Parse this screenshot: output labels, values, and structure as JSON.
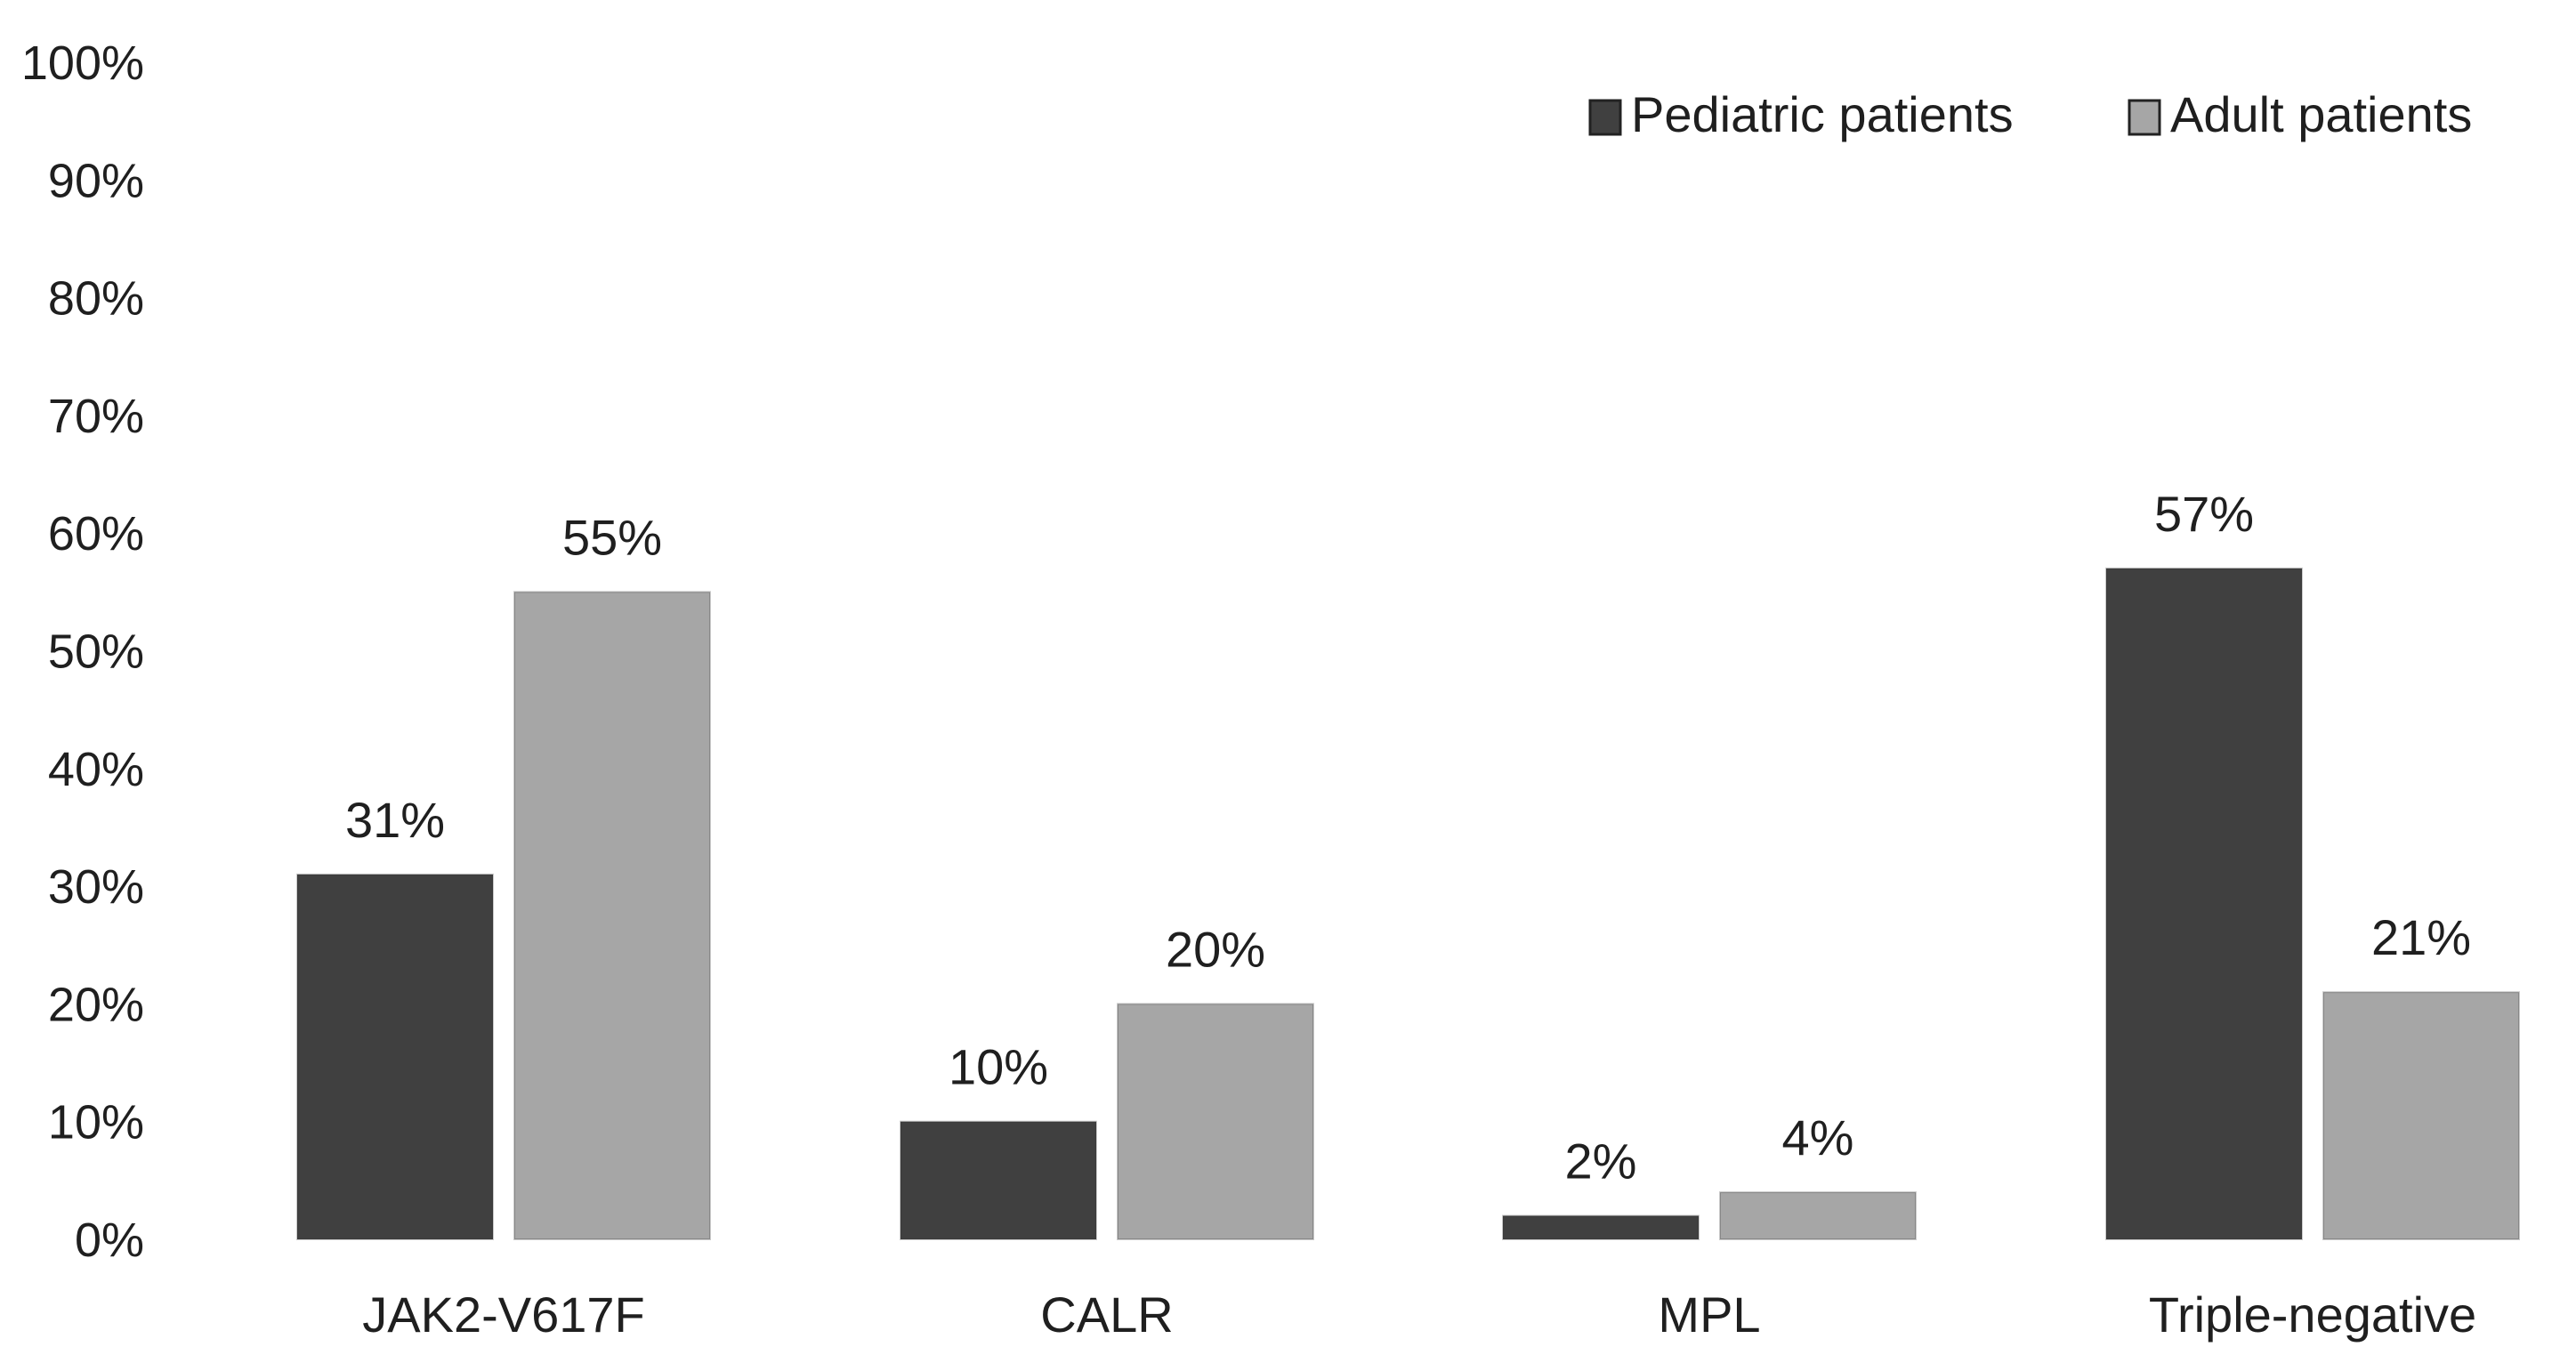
{
  "chart_data": {
    "type": "bar",
    "title": "",
    "xlabel": "",
    "ylabel": "",
    "ylim": [
      0,
      100
    ],
    "y_ticks": [
      0,
      10,
      20,
      30,
      40,
      50,
      60,
      70,
      80,
      90,
      100
    ],
    "y_tick_labels": [
      "0%",
      "10%",
      "20%",
      "30%",
      "40%",
      "50%",
      "60%",
      "70%",
      "80%",
      "90%",
      "100%"
    ],
    "categories": [
      "JAK2-V617F",
      "CALR",
      "MPL",
      "Triple-negative"
    ],
    "series": [
      {
        "name": "Pediatric patients",
        "color": "#404040",
        "values": [
          31,
          10,
          2,
          57
        ],
        "labels": [
          "31%",
          "10%",
          "2%",
          "57%"
        ]
      },
      {
        "name": "Adult patients",
        "color": "#a6a6a6",
        "values": [
          55,
          20,
          4,
          21
        ],
        "labels": [
          "55%",
          "20%",
          "4%",
          "21%"
        ]
      }
    ],
    "grid": false,
    "legend_position": "top-right"
  }
}
